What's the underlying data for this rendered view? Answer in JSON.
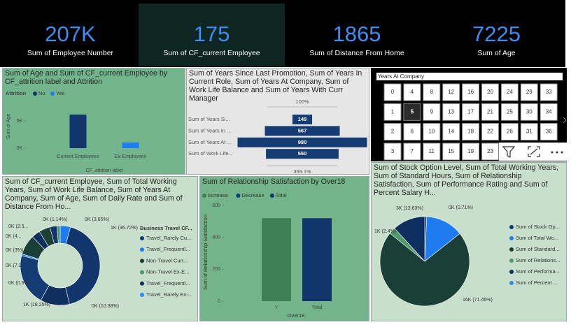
{
  "cards": [
    {
      "value": 207000,
      "value_label": "207K",
      "label": "Sum of Employee Number"
    },
    {
      "value": 175,
      "label": "Sum of CF_current Employee"
    },
    {
      "value": 1865,
      "label": "Sum of Distance From Home"
    },
    {
      "value": 7225,
      "label": "Sum of Age"
    }
  ],
  "chart_data": [
    {
      "type": "bar",
      "title": "Sum of Age and Sum of CF_current Employee by CF_attrition label and Attrition",
      "legend_title": "Attrition",
      "categories": [
        "Current Employees",
        "Ex-Employees"
      ],
      "series": [
        {
          "name": "No",
          "color": "#12366b",
          "values": [
            6200,
            null
          ]
        },
        {
          "name": "Yes",
          "color": "#1e7bf0",
          "values": [
            null,
            1025
          ]
        }
      ],
      "ylim": [
        0,
        8000
      ],
      "yticks": [
        {
          "value": 0,
          "label": "0K"
        },
        {
          "value": 5000,
          "label": "5K"
        }
      ],
      "xlabel": "CF_attrition label",
      "ylabel": "Sum of Age"
    },
    {
      "type": "funnel",
      "title": "Sum of Years Since Last Promotion, Sum of Years In Current Role, Sum of Years At Company, Sum of Work Life Balance and Sum of Years With Curr Manager",
      "categories": [
        "Sum of Years Si...",
        "Sum of Years In ...",
        "Sum of Years At ...",
        "Sum of Work Life..."
      ],
      "values": [
        149,
        567,
        980,
        550
      ],
      "color": "#163d73",
      "top_label": "100%",
      "bottom_label": "369.1%"
    },
    {
      "type": "slicer",
      "title": "Years At Company",
      "rows": [
        [
          0,
          4,
          8,
          12,
          16,
          20,
          24,
          29,
          33
        ],
        [
          1,
          5,
          9,
          13,
          17,
          21,
          25,
          30,
          34
        ],
        [
          2,
          6,
          10,
          14,
          18,
          22,
          26,
          31,
          36
        ],
        [
          3,
          7,
          11,
          15,
          19,
          23
        ]
      ],
      "selected": 5
    },
    {
      "type": "donut",
      "title": "Sum of CF_current Employee, Sum of Total Working Years, Sum of Work Life Balance, Sum of Years At Company, Sum of Age, Sum of Daily Rate and Sum of Distance From Ho...",
      "values": [
        3.65,
        36.72,
        10.38,
        18.25,
        0.6,
        7.1,
        3,
        4,
        2.5,
        1.14
      ],
      "value_labels": [
        "0K (3.65%)",
        "1K (36.72%)",
        "0K (10.38%)",
        "1K (18.25%)",
        "0K (0.6%)",
        "0K (7.1...",
        "0K (3%)",
        "0K (4...",
        "0K (2.5...",
        "0K (1.14%)"
      ],
      "colors": [
        "#1e7bf0",
        "#12366b",
        "#0f2f60",
        "#163d73",
        "#1e7bf0",
        "#1a3f37",
        "#0f2f60",
        "#1a3f37",
        "#12366b",
        "#4d9a6b"
      ],
      "legend_title": "Business Travel CF...",
      "legend_names": [
        "Travel_Rarely Cu...",
        "Travel_Frequentl...",
        "Non-Travel Curr...",
        "Non-Travel Ex-E...",
        "Travel_Frequentl...",
        "Travel_Rarely Ex-..."
      ],
      "legend_colors": [
        "#12366b",
        "#1e7bf0",
        "#1a3f37",
        "#4d9a6b",
        "#0f2f60",
        "#2a8af0"
      ]
    },
    {
      "type": "waterfall",
      "title": "Sum of Relationship Satisfaction by Over18",
      "legend_names": [
        "Increase",
        "Decrease",
        "Total"
      ],
      "legend_colors": [
        "#3f8058",
        "#163d73",
        "#12366b"
      ],
      "categories": [
        "Y",
        "Total"
      ],
      "values": [
        520,
        520
      ],
      "ylim": [
        0,
        650
      ],
      "yticks": [
        0,
        200,
        400,
        600
      ],
      "xlabel": "Over18",
      "ylabel": "Sum of Relationship Satisfaction"
    },
    {
      "type": "pie",
      "title": "Sum of Stock Option Level, Sum of Total Working Years, Sum of Standard Hours, Sum of Relationship Satisfaction, Sum of Performance Rating and Sum of Percent Salary H...",
      "values": [
        0.71,
        13.63,
        71.46,
        2.4,
        11.8
      ],
      "value_labels": [
        "0K (0.71%)",
        "3K (13.63%)",
        "16K (71.46%)",
        "1K (2.4%)",
        null
      ],
      "colors": [
        "#12366b",
        "#1e7bf0",
        "#1a3f37",
        "#4d9a6b",
        "#0f2f60"
      ],
      "legend_names": [
        "Sum of Stock Op...",
        "Sum of Total Wo...",
        "Sum of Standard...",
        "Sum of Relations...",
        "Sum of Performa...",
        "Sum of Percent ..."
      ],
      "legend_colors": [
        "#12366b",
        "#1e7bf0",
        "#1a3f37",
        "#4d9a6b",
        "#0f2f60",
        "#2a8af0"
      ]
    }
  ]
}
